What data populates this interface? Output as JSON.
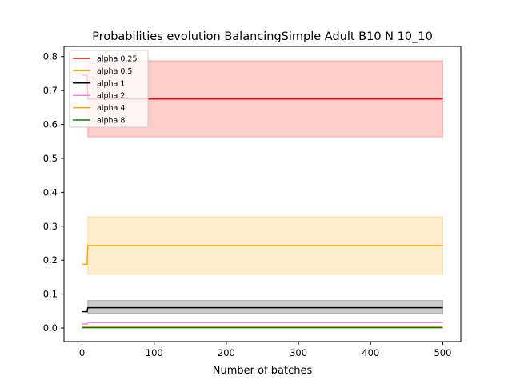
{
  "chart_data": {
    "type": "line",
    "title": "Probabilities evolution BalancingSimple Adult B10 N 10_10",
    "xlabel": "Number of batches",
    "ylabel": "",
    "xlim": [
      -25,
      525
    ],
    "ylim": [
      -0.04,
      0.83
    ],
    "xticks": [
      0,
      100,
      200,
      300,
      400,
      500
    ],
    "yticks": [
      0.0,
      0.1,
      0.2,
      0.3,
      0.4,
      0.5,
      0.6,
      0.7,
      0.8
    ],
    "legend_position": "top-left",
    "grid": false,
    "series": [
      {
        "name": "alpha 0.25",
        "color": "#ff0000",
        "x": [
          0,
          7,
          8,
          500
        ],
        "y": [
          0.745,
          0.745,
          0.675,
          0.675
        ],
        "band": {
          "x": [
            8,
            500
          ],
          "lower": [
            0.563,
            0.563
          ],
          "upper": [
            0.788,
            0.788
          ],
          "color": "#ff0000"
        }
      },
      {
        "name": "alpha 0.5",
        "color": "#ffa500",
        "x": [
          0,
          7,
          8,
          500
        ],
        "y": [
          0.188,
          0.188,
          0.243,
          0.243
        ],
        "band": {
          "x": [
            8,
            500
          ],
          "lower": [
            0.158,
            0.158
          ],
          "upper": [
            0.328,
            0.328
          ],
          "color": "#ffa500"
        }
      },
      {
        "name": "alpha 1",
        "color": "#000000",
        "x": [
          0,
          7,
          8,
          500
        ],
        "y": [
          0.048,
          0.048,
          0.06,
          0.06
        ],
        "band": {
          "x": [
            8,
            500
          ],
          "lower": [
            0.043,
            0.043
          ],
          "upper": [
            0.081,
            0.081
          ],
          "color": "#000000"
        }
      },
      {
        "name": "alpha 2",
        "color": "#ee82ee",
        "x": [
          0,
          7,
          8,
          500
        ],
        "y": [
          0.012,
          0.012,
          0.016,
          0.016
        ]
      },
      {
        "name": "alpha 4",
        "color": "#ffa500",
        "x": [
          0,
          500
        ],
        "y": [
          0.003,
          0.003
        ]
      },
      {
        "name": "alpha 8",
        "color": "#008000",
        "x": [
          0,
          500
        ],
        "y": [
          0.001,
          0.001
        ]
      }
    ]
  }
}
